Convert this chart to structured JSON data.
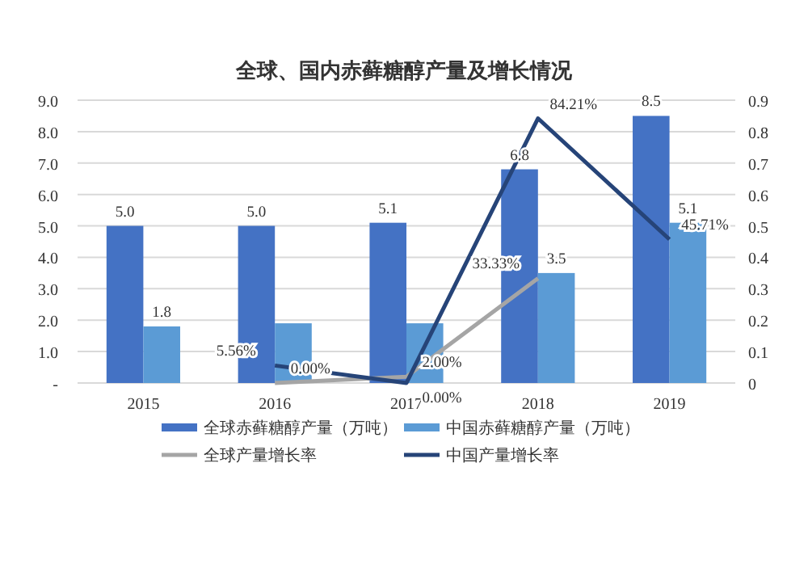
{
  "chart_data": {
    "type": "bar",
    "title": "全球、国内赤藓糖醇产量及增长情况",
    "categories": [
      "2015",
      "2016",
      "2017",
      "2018",
      "2019"
    ],
    "series": [
      {
        "name": "全球赤藓糖醇产量（万吨）",
        "color": "#4472c4",
        "values": [
          5.0,
          5.0,
          5.1,
          6.8,
          8.5
        ],
        "value_labels": [
          "5.0",
          "5.0",
          "5.1",
          "6.8",
          "8.5"
        ]
      },
      {
        "name": "中国赤藓糖醇产量（万吨）",
        "color": "#5b9bd5",
        "values": [
          1.8,
          1.9,
          1.9,
          3.5,
          5.1
        ],
        "value_labels": [
          "1.8",
          null,
          null,
          "3.5",
          "5.1"
        ]
      },
      {
        "name": "全球产量增长率",
        "type": "line",
        "axis": "y2",
        "color": "#a5a5a5",
        "values": [
          null,
          0.0,
          0.02,
          0.3333,
          null
        ],
        "value_labels": [
          null,
          "0.00%",
          "2.00%",
          "33.33%",
          null
        ]
      },
      {
        "name": "中国产量增长率",
        "type": "line",
        "axis": "y2",
        "color": "#264478",
        "values": [
          null,
          0.0556,
          0.0,
          0.8421,
          0.4571
        ],
        "value_labels": [
          null,
          "5.56%",
          "0.00%",
          "84.21%",
          "45.71%"
        ]
      }
    ],
    "ylim": [
      0,
      9
    ],
    "yticks": [
      {
        "value": 0,
        "label": "-"
      },
      {
        "value": 1,
        "label": "1.0"
      },
      {
        "value": 2,
        "label": "2.0"
      },
      {
        "value": 3,
        "label": "3.0"
      },
      {
        "value": 4,
        "label": "4.0"
      },
      {
        "value": 5,
        "label": "5.0"
      },
      {
        "value": 6,
        "label": "6.0"
      },
      {
        "value": 7,
        "label": "7.0"
      },
      {
        "value": 8,
        "label": "8.0"
      },
      {
        "value": 9,
        "label": "9.0"
      }
    ],
    "y2lim": [
      0,
      0.9
    ],
    "y2ticks": [
      0,
      0.1,
      0.2,
      0.3,
      0.4,
      0.5,
      0.6,
      0.7,
      0.8,
      0.9
    ],
    "grid": "y",
    "legend": "bottom",
    "marker": "none"
  }
}
